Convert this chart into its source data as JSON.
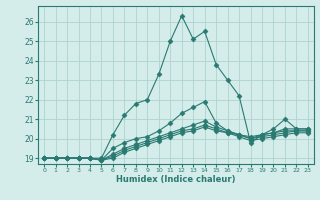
{
  "xlabel": "Humidex (Indice chaleur)",
  "bg_color": "#d4ecea",
  "grid_color": "#b0d4d0",
  "line_color": "#2a7a72",
  "xlim": [
    -0.5,
    23.5
  ],
  "ylim": [
    18.7,
    26.8
  ],
  "xticks": [
    0,
    1,
    2,
    3,
    4,
    5,
    6,
    7,
    8,
    9,
    10,
    11,
    12,
    13,
    14,
    15,
    16,
    17,
    18,
    19,
    20,
    21,
    22,
    23
  ],
  "yticks": [
    19,
    20,
    21,
    22,
    23,
    24,
    25,
    26
  ],
  "lines": [
    [
      19.0,
      19.0,
      19.0,
      19.0,
      19.0,
      19.0,
      20.2,
      21.2,
      21.8,
      22.0,
      23.3,
      25.0,
      26.3,
      25.1,
      25.5,
      23.8,
      23.0,
      22.2,
      19.8,
      20.2,
      20.5,
      21.0,
      20.5,
      20.5
    ],
    [
      19.0,
      19.0,
      19.0,
      19.0,
      19.0,
      18.9,
      19.5,
      19.8,
      20.0,
      20.1,
      20.4,
      20.8,
      21.3,
      21.6,
      21.9,
      20.8,
      20.4,
      20.2,
      20.0,
      20.2,
      20.3,
      20.5,
      20.5,
      20.5
    ],
    [
      19.0,
      19.0,
      19.0,
      19.0,
      19.0,
      18.9,
      19.2,
      19.5,
      19.7,
      19.9,
      20.1,
      20.3,
      20.5,
      20.7,
      20.9,
      20.6,
      20.4,
      20.2,
      20.1,
      20.2,
      20.3,
      20.4,
      20.4,
      20.4
    ],
    [
      19.0,
      19.0,
      19.0,
      19.0,
      19.0,
      18.9,
      19.1,
      19.4,
      19.6,
      19.8,
      20.0,
      20.2,
      20.4,
      20.5,
      20.7,
      20.5,
      20.3,
      20.2,
      20.0,
      20.1,
      20.2,
      20.3,
      20.4,
      20.4
    ],
    [
      19.0,
      19.0,
      19.0,
      19.0,
      19.0,
      18.9,
      19.0,
      19.3,
      19.5,
      19.7,
      19.9,
      20.1,
      20.3,
      20.4,
      20.6,
      20.4,
      20.3,
      20.1,
      19.9,
      20.0,
      20.1,
      20.2,
      20.3,
      20.3
    ]
  ],
  "marker": "D",
  "markersize": 2.5,
  "linewidth": 0.8
}
